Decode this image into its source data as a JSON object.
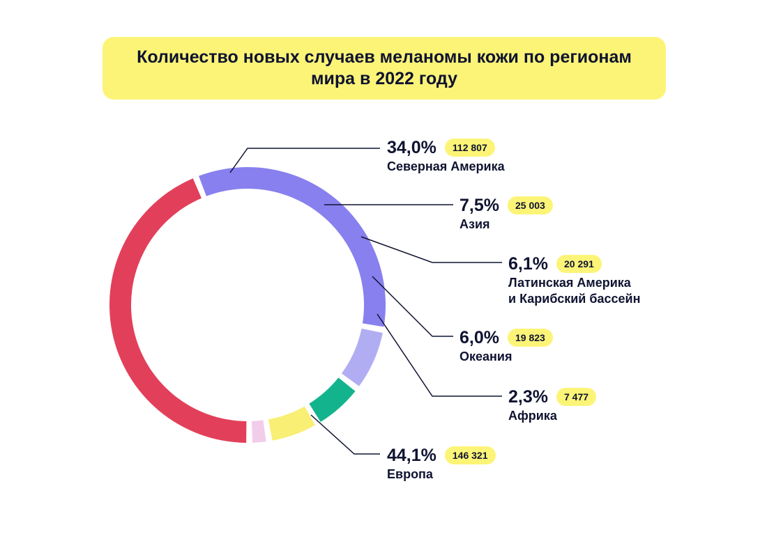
{
  "title": "Количество новых случаев меланомы кожи по регионам мира в 2022 году",
  "colors": {
    "title_bg": "#fcf477",
    "badge_bg": "#fcf477",
    "text": "#0f1330"
  },
  "chart_data": {
    "type": "pie",
    "title": "Количество новых случаев меланомы кожи по регионам мира в 2022 году",
    "donut": true,
    "slices": [
      {
        "name": "Северная Америка",
        "percent": 34.0,
        "percent_label": "34,0%",
        "value": 112807,
        "value_label": "112 807",
        "color": "#8880ee"
      },
      {
        "name": "Азия",
        "percent": 7.5,
        "percent_label": "7,5%",
        "value": 25003,
        "value_label": "25 003",
        "color": "#b1adf3"
      },
      {
        "name": "Латинская Америка\nи Карибский бассейн",
        "percent": 6.1,
        "percent_label": "6,1%",
        "value": 20291,
        "value_label": "20 291",
        "color": "#13b48d"
      },
      {
        "name": "Океания",
        "percent": 6.0,
        "percent_label": "6,0%",
        "value": 19823,
        "value_label": "19 823",
        "color": "#f8ef74"
      },
      {
        "name": "Африка",
        "percent": 2.3,
        "percent_label": "2,3%",
        "value": 7477,
        "value_label": "7 477",
        "color": "#f1cdea"
      },
      {
        "name": "Европа",
        "percent": 44.1,
        "percent_label": "44,1%",
        "value": 146321,
        "value_label": "146 321",
        "color": "#e2405a"
      }
    ]
  }
}
